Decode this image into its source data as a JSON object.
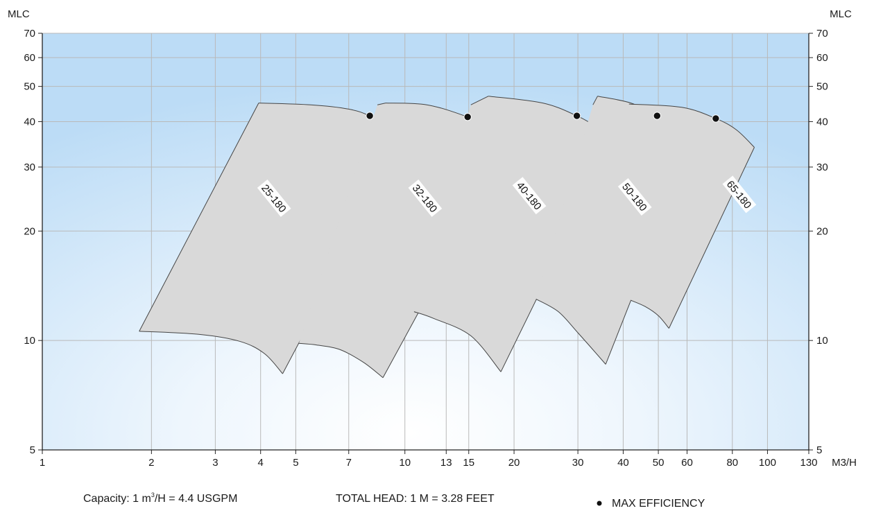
{
  "chart_data": {
    "type": "area",
    "x_scale": "log",
    "y_scale": "log",
    "x_unit": "M3/H",
    "y_unit_left": "MLC",
    "y_unit_right": "MLC",
    "xlim": [
      1,
      130
    ],
    "ylim": [
      5,
      70
    ],
    "x_ticks": [
      1,
      2,
      3,
      4,
      5,
      7,
      10,
      13,
      15,
      20,
      30,
      40,
      50,
      60,
      80,
      100,
      130
    ],
    "y_ticks_left": [
      5,
      10,
      20,
      30,
      40,
      50,
      60,
      70
    ],
    "y_ticks_right": [
      5,
      10,
      20,
      30,
      40,
      50,
      60,
      70
    ],
    "x_grid": [
      1,
      2,
      3,
      4,
      5,
      7,
      10,
      13,
      15,
      20,
      30,
      40,
      50,
      60,
      80,
      100,
      130
    ],
    "y_grid": [
      10,
      20,
      30,
      40,
      50,
      60,
      70
    ],
    "grid": true,
    "background_gradient": [
      "#bcdcf6",
      "#ffffff"
    ],
    "region_fill": "#d9d9d9",
    "region_stroke": "#444444",
    "series": [
      {
        "name": "25-180",
        "top_curve": [
          [
            3.95,
            45
          ],
          [
            5.5,
            44.5
          ],
          [
            7.0,
            43.3
          ],
          [
            8.0,
            41.5
          ],
          [
            9.1,
            38.5
          ],
          [
            10.0,
            35
          ]
        ],
        "right_edge": [
          [
            10.0,
            35
          ],
          [
            4.6,
            8.1
          ]
        ],
        "bottom_curve": [
          [
            4.6,
            8.1
          ],
          [
            4.1,
            9.2
          ],
          [
            3.5,
            9.95
          ],
          [
            2.7,
            10.4
          ],
          [
            1.85,
            10.6
          ]
        ],
        "left_edge": [
          [
            1.85,
            10.6
          ],
          [
            3.95,
            45
          ]
        ],
        "best_efficiency_point": [
          8.0,
          41.5
        ]
      },
      {
        "name": "32-180",
        "top_curve": [
          [
            8.85,
            45
          ],
          [
            11.5,
            44.5
          ],
          [
            14.9,
            41.2
          ],
          [
            17.4,
            38.3
          ],
          [
            19.3,
            34
          ]
        ],
        "right_edge": [
          [
            19.3,
            34
          ],
          [
            8.7,
            7.9
          ]
        ],
        "bottom_curve": [
          [
            8.7,
            7.9
          ],
          [
            7.7,
            8.7
          ],
          [
            6.6,
            9.45
          ],
          [
            5.7,
            9.72
          ],
          [
            5.1,
            9.82
          ]
        ],
        "left_edge": [
          [
            8.4,
            44.5
          ],
          [
            8.85,
            45
          ]
        ],
        "best_efficiency_point": [
          14.9,
          41.2
        ]
      },
      {
        "name": "40-180",
        "top_curve": [
          [
            17.0,
            47
          ],
          [
            24.0,
            45.0
          ],
          [
            29.8,
            41.5
          ],
          [
            34.0,
            38.5
          ],
          [
            37.8,
            35.5
          ]
        ],
        "right_edge": [
          [
            37.8,
            35.5
          ],
          [
            18.4,
            8.2
          ]
        ],
        "bottom_curve": [
          [
            18.4,
            8.2
          ],
          [
            15.2,
            10.3
          ],
          [
            12.0,
            11.5
          ],
          [
            10.6,
            12.0
          ]
        ],
        "left_edge": [
          [
            15.2,
            44.5
          ],
          [
            17.0,
            47
          ]
        ],
        "best_efficiency_point": [
          29.8,
          41.5
        ]
      },
      {
        "name": "50-180",
        "top_curve": [
          [
            34.0,
            47
          ],
          [
            42.0,
            45.0
          ],
          [
            49.6,
            41.5
          ],
          [
            56.0,
            38.5
          ],
          [
            62.0,
            34.5
          ]
        ],
        "right_edge": [
          [
            62.0,
            34.5
          ],
          [
            35.8,
            8.6
          ]
        ],
        "bottom_curve": [
          [
            35.8,
            8.6
          ],
          [
            30.0,
            10.5
          ],
          [
            26.5,
            12.0
          ],
          [
            23.0,
            13.0
          ]
        ],
        "left_edge": [
          [
            33.0,
            44.5
          ],
          [
            34.0,
            47
          ]
        ],
        "best_efficiency_point": [
          49.6,
          41.5
        ]
      },
      {
        "name": "65-180",
        "top_curve": [
          [
            41.5,
            44.7
          ],
          [
            58.0,
            43.8
          ],
          [
            72.0,
            40.8
          ],
          [
            82.0,
            38.0
          ],
          [
            92.0,
            34.0
          ]
        ],
        "right_edge": [
          [
            92.0,
            34.0
          ],
          [
            53.5,
            10.8
          ]
        ],
        "bottom_curve": [
          [
            53.5,
            10.8
          ],
          [
            50.0,
            11.7
          ],
          [
            46.0,
            12.4
          ],
          [
            42.0,
            12.9
          ]
        ],
        "left_edge": [],
        "best_efficiency_point": [
          72.0,
          40.8
        ]
      }
    ],
    "labels": [
      {
        "text": "25-180",
        "x": 4.35,
        "y": 24.6,
        "angle": 51
      },
      {
        "text": "32-180",
        "x": 11.35,
        "y": 24.6,
        "angle": 51
      },
      {
        "text": "40-180",
        "x": 22.0,
        "y": 25.0,
        "angle": 51
      },
      {
        "text": "50-180",
        "x": 43.0,
        "y": 24.8,
        "angle": 51
      },
      {
        "text": "65-180",
        "x": 83.5,
        "y": 25.2,
        "angle": 51
      }
    ]
  },
  "footer": {
    "capacity_prefix": "Capacity: 1 m",
    "capacity_sup": "3",
    "capacity_suffix": "/H = 4.4 USGPM",
    "head": "TOTAL HEAD: 1 M = 3.28 FEET",
    "legend_label": "MAX EFFICIENCY"
  }
}
